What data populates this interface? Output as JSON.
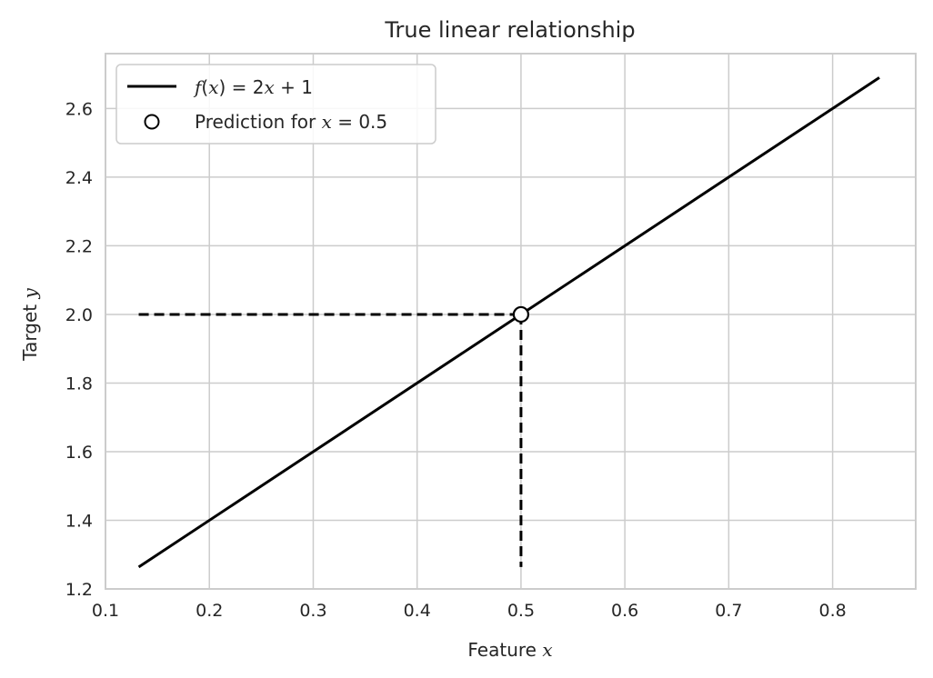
{
  "chart_data": {
    "type": "line",
    "title": "True linear relationship",
    "xlabel_text": "Feature ",
    "xlabel_var": "x",
    "ylabel_text": "Target ",
    "ylabel_var": "y",
    "xlim": [
      0.1,
      0.88
    ],
    "ylim": [
      1.2,
      2.76
    ],
    "xticks": [
      0.1,
      0.2,
      0.3,
      0.4,
      0.5,
      0.6,
      0.7,
      0.8
    ],
    "yticks": [
      1.2,
      1.4,
      1.6,
      1.8,
      2.0,
      2.2,
      2.4,
      2.6
    ],
    "xtick_labels": [
      "0.1",
      "0.2",
      "0.3",
      "0.4",
      "0.5",
      "0.6",
      "0.7",
      "0.8"
    ],
    "ytick_labels": [
      "1.2",
      "1.4",
      "1.6",
      "1.8",
      "2.0",
      "2.2",
      "2.4",
      "2.6"
    ],
    "grid": true,
    "legend_position": "upper-left",
    "series": [
      {
        "name": "f(x) = 2x + 1",
        "kind": "line",
        "color": "#000000",
        "x": [
          0.132,
          0.845
        ],
        "y": [
          1.264,
          2.69
        ]
      },
      {
        "name": "Prediction for x = 0.5",
        "kind": "scatter",
        "marker": "open-circle",
        "color": "#000000",
        "x": [
          0.5
        ],
        "y": [
          2.0
        ]
      }
    ],
    "guides": [
      {
        "kind": "dashed",
        "x": [
          0.132,
          0.5
        ],
        "y": [
          2.0,
          2.0
        ]
      },
      {
        "kind": "dashed",
        "x": [
          0.5,
          0.5
        ],
        "y": [
          2.0,
          1.264
        ]
      }
    ],
    "legend": {
      "line_label": {
        "f": "f",
        "lp": "(",
        "x": "x",
        "rest": ") = 2",
        "x2": "x",
        "tail": " + 1"
      },
      "point_label": {
        "text": "Prediction for ",
        "x": "x",
        "tail": " = 0.5"
      }
    }
  }
}
